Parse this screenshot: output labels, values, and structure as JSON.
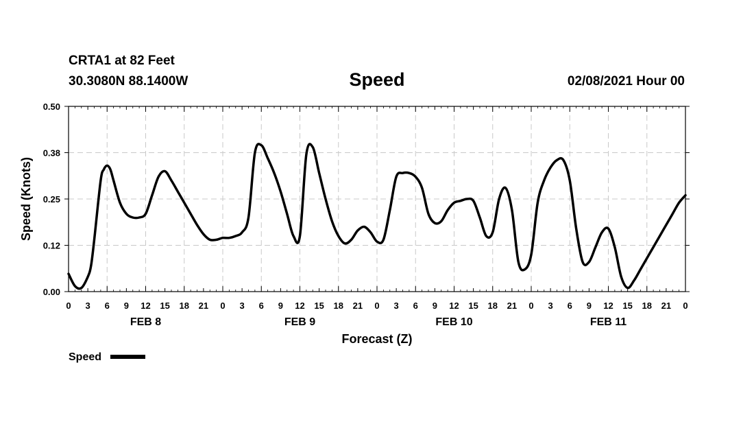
{
  "header": {
    "station": "CRTA1 at 82 Feet",
    "coords": "30.3080N 88.1400W",
    "title": "Speed",
    "datetime": "02/08/2021 Hour 00"
  },
  "legend": {
    "label": "Speed"
  },
  "chart_data": {
    "type": "line",
    "title": "Speed",
    "xlabel": "Forecast (Z)",
    "ylabel": "Speed (Knots)",
    "ylim": [
      0,
      0.5
    ],
    "xlim_hours": [
      0,
      96
    ],
    "y_ticks": [
      "0.00",
      "0.12",
      "0.25",
      "0.38",
      "0.50"
    ],
    "x_tick_labels": [
      "0",
      "3",
      "6",
      "9",
      "12",
      "15",
      "18",
      "21",
      "0",
      "3",
      "6",
      "9",
      "12",
      "15",
      "18",
      "21",
      "0",
      "3",
      "6",
      "9",
      "12",
      "15",
      "18",
      "21",
      "0",
      "3",
      "6",
      "9",
      "12",
      "15",
      "18",
      "21",
      "0"
    ],
    "day_labels": [
      {
        "label": "FEB 8",
        "hour": 12
      },
      {
        "label": "FEB 9",
        "hour": 36
      },
      {
        "label": "FEB 10",
        "hour": 60
      },
      {
        "label": "FEB 11",
        "hour": 84
      }
    ],
    "grid": true,
    "legend_position": "bottom-left",
    "series": [
      {
        "name": "Speed",
        "color": "#000000",
        "x": [
          0,
          1,
          2,
          3,
          3.5,
          4,
          5,
          5.5,
          6,
          6.5,
          7,
          8,
          9,
          10,
          11,
          12,
          13,
          14,
          15,
          16,
          17,
          18,
          19,
          20,
          21,
          22,
          23,
          24,
          25,
          26,
          27,
          28,
          29,
          30,
          31,
          32,
          33,
          34,
          35,
          36,
          37,
          38,
          39,
          40,
          41,
          42,
          43,
          44,
          45,
          46,
          47,
          48,
          49,
          50,
          51,
          52,
          53,
          54,
          55,
          56,
          57,
          58,
          59,
          60,
          61,
          62,
          63,
          64,
          65,
          66,
          67,
          68,
          69,
          70,
          71,
          72,
          73,
          74,
          75,
          76,
          77,
          78,
          79,
          80,
          81,
          82,
          83,
          84,
          85,
          86,
          87,
          88,
          89,
          90,
          91,
          92,
          93,
          94,
          95,
          96
        ],
        "values": [
          0.048,
          0.015,
          0.01,
          0.04,
          0.07,
          0.14,
          0.3,
          0.33,
          0.34,
          0.33,
          0.3,
          0.24,
          0.21,
          0.2,
          0.2,
          0.21,
          0.26,
          0.31,
          0.325,
          0.3,
          0.27,
          0.24,
          0.21,
          0.18,
          0.155,
          0.14,
          0.14,
          0.145,
          0.145,
          0.15,
          0.16,
          0.2,
          0.375,
          0.395,
          0.36,
          0.32,
          0.27,
          0.21,
          0.15,
          0.15,
          0.37,
          0.39,
          0.32,
          0.25,
          0.19,
          0.15,
          0.13,
          0.14,
          0.165,
          0.175,
          0.16,
          0.135,
          0.14,
          0.22,
          0.31,
          0.32,
          0.32,
          0.31,
          0.28,
          0.21,
          0.185,
          0.19,
          0.22,
          0.24,
          0.245,
          0.25,
          0.245,
          0.2,
          0.15,
          0.16,
          0.25,
          0.28,
          0.22,
          0.08,
          0.06,
          0.1,
          0.24,
          0.3,
          0.335,
          0.355,
          0.355,
          0.3,
          0.17,
          0.08,
          0.08,
          0.12,
          0.16,
          0.17,
          0.12,
          0.04,
          0.01,
          0.03,
          0.06,
          0.09,
          0.12,
          0.15,
          0.18,
          0.21,
          0.24,
          0.26
        ]
      }
    ]
  }
}
